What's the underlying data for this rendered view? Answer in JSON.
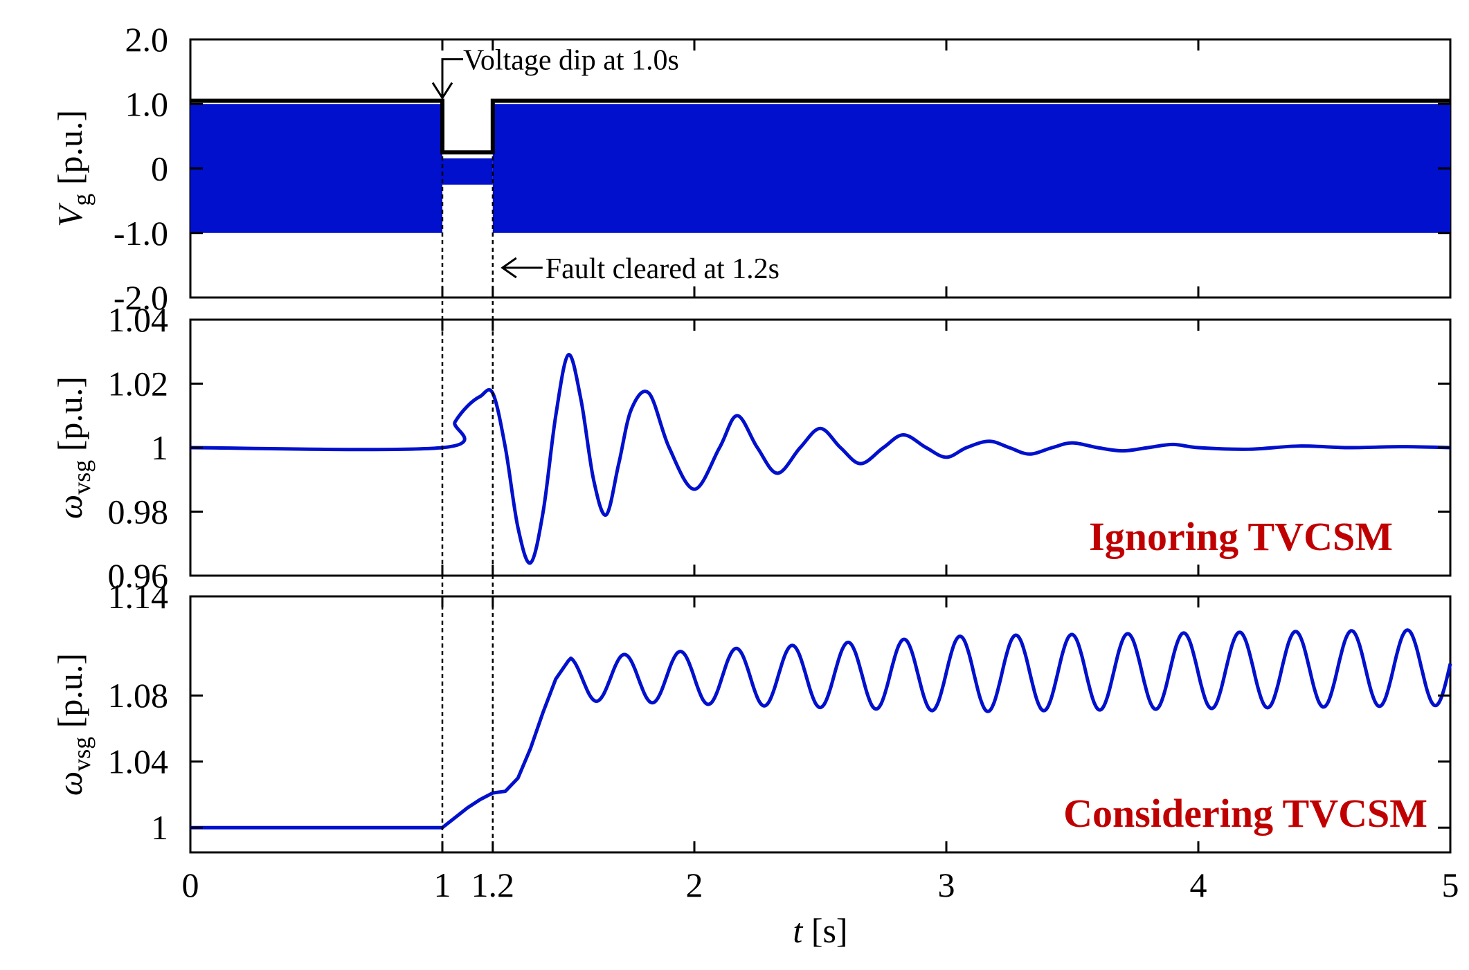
{
  "colors": {
    "series": "#0010cc",
    "envelope": "#000000",
    "annotation_red": "#c00000",
    "axis": "#000000"
  },
  "chart_data": [
    {
      "type": "line",
      "id": "vg",
      "ylabel_main": "V",
      "ylabel_sub": "g",
      "ylabel_unit": " [p.u.]",
      "xlim": [
        0,
        5
      ],
      "ylim": [
        -2.0,
        2.0
      ],
      "yticks": [
        2.0,
        1.0,
        0,
        -1.0,
        -2.0
      ],
      "ytick_labels": [
        "2.0",
        "1.0",
        "0",
        "-1.0",
        "-2.0"
      ],
      "series": [
        {
          "kind": "filled-oscillation",
          "description_values": "sinusoidal grid voltage, amplitude 1.0 p.u., dips during fault",
          "segments": [
            {
              "x0": 0,
              "x1": 1.0,
              "ymin": -1.0,
              "ymax": 1.0
            },
            {
              "x0": 1.0,
              "x1": 1.2,
              "ymin": 0.2,
              "ymax": 0.2
            },
            {
              "x0": 1.2,
              "x1": 5.0,
              "ymin": -1.0,
              "ymax": 1.0
            }
          ]
        },
        {
          "kind": "envelope",
          "points": [
            [
              0,
              1.05
            ],
            [
              1.0,
              1.05
            ],
            [
              1.0,
              0.25
            ],
            [
              1.2,
              0.25
            ],
            [
              1.2,
              1.05
            ],
            [
              5.0,
              1.05
            ]
          ]
        }
      ],
      "annotations": [
        {
          "text": "Voltage dip at 1.0s",
          "x": 1.0,
          "y": 1.05
        },
        {
          "text": "Fault cleared at 1.2s",
          "x": 1.2,
          "y": -1.5
        }
      ]
    },
    {
      "type": "line",
      "id": "wvsg-ignoring",
      "ylabel_main": "ω",
      "ylabel_sub": "vsg",
      "ylabel_unit": " [p.u.]",
      "xlim": [
        0,
        5
      ],
      "ylim": [
        0.96,
        1.04
      ],
      "yticks": [
        1.04,
        1.02,
        1,
        0.98,
        0.96
      ],
      "ytick_labels": [
        "1.04",
        "1.02",
        "1",
        "0.98",
        "0.96"
      ],
      "label": "Ignoring TVCSM",
      "series": [
        {
          "kind": "damped",
          "base": 1.0,
          "fault_start": 1.0,
          "fault_end": 1.2,
          "fault_peak": 1.017,
          "points": [
            [
              0,
              1.0
            ],
            [
              1.0,
              1.0
            ],
            [
              1.05,
              1.008
            ],
            [
              1.1,
              1.013
            ],
            [
              1.15,
              1.016
            ],
            [
              1.2,
              1.017
            ],
            [
              1.25,
              1.0
            ],
            [
              1.3,
              0.975
            ],
            [
              1.35,
              0.964
            ],
            [
              1.4,
              0.98
            ],
            [
              1.45,
              1.01
            ],
            [
              1.5,
              1.029
            ],
            [
              1.55,
              1.015
            ],
            [
              1.6,
              0.99
            ],
            [
              1.65,
              0.979
            ],
            [
              1.7,
              0.995
            ],
            [
              1.75,
              1.012
            ],
            [
              1.82,
              1.017
            ],
            [
              1.9,
              1.0
            ],
            [
              2.0,
              0.987
            ],
            [
              2.1,
              1.0
            ],
            [
              2.17,
              1.01
            ],
            [
              2.25,
              1.0
            ],
            [
              2.33,
              0.992
            ],
            [
              2.42,
              1.0
            ],
            [
              2.5,
              1.006
            ],
            [
              2.58,
              1.0
            ],
            [
              2.66,
              0.995
            ],
            [
              2.75,
              1.0
            ],
            [
              2.83,
              1.004
            ],
            [
              2.92,
              1.0
            ],
            [
              3.0,
              0.997
            ],
            [
              3.08,
              1.0
            ],
            [
              3.17,
              1.002
            ],
            [
              3.25,
              1.0
            ],
            [
              3.33,
              0.998
            ],
            [
              3.42,
              1.0
            ],
            [
              3.5,
              1.0015
            ],
            [
              3.6,
              1.0
            ],
            [
              3.7,
              0.999
            ],
            [
              3.8,
              1.0
            ],
            [
              3.9,
              1.001
            ],
            [
              4.0,
              1.0
            ],
            [
              4.2,
              0.9995
            ],
            [
              4.4,
              1.0005
            ],
            [
              4.6,
              1.0
            ],
            [
              4.8,
              1.0003
            ],
            [
              5.0,
              1.0
            ]
          ]
        }
      ]
    },
    {
      "type": "line",
      "id": "wvsg-considering",
      "ylabel_main": "ω",
      "ylabel_sub": "vsg",
      "ylabel_unit": " [p.u.]",
      "xlim": [
        0,
        5
      ],
      "ylim": [
        0.985,
        1.14
      ],
      "yticks": [
        1.14,
        1.08,
        1.04,
        1
      ],
      "ytick_labels": [
        "1.14",
        "1.08",
        "1.04",
        "1"
      ],
      "label": "Considering TVCSM",
      "series": [
        {
          "kind": "sustained",
          "points_pre": [
            [
              0,
              1.0
            ],
            [
              1.0,
              1.0
            ],
            [
              1.05,
              1.006
            ],
            [
              1.1,
              1.012
            ],
            [
              1.15,
              1.017
            ],
            [
              1.2,
              1.021
            ],
            [
              1.25,
              1.022
            ]
          ],
          "rise": [
            [
              1.25,
              1.022
            ],
            [
              1.3,
              1.03
            ],
            [
              1.35,
              1.048
            ],
            [
              1.4,
              1.07
            ],
            [
              1.45,
              1.09
            ],
            [
              1.5,
              1.101
            ]
          ],
          "osc_center_start": 1.09,
          "osc_center_end": 1.097,
          "osc_amp_start": 0.013,
          "osc_amp_end": 0.023,
          "osc_period": 0.222,
          "osc_phase_peak_first": 1.5
        }
      ]
    }
  ],
  "xaxis": {
    "ticks": [
      0,
      1,
      1.2,
      2,
      3,
      4,
      5
    ],
    "tick_labels": [
      "0",
      "1",
      "1.2",
      "2",
      "3",
      "4",
      "5"
    ],
    "xlabel_main": "t",
    "xlabel_unit": " [s]"
  }
}
